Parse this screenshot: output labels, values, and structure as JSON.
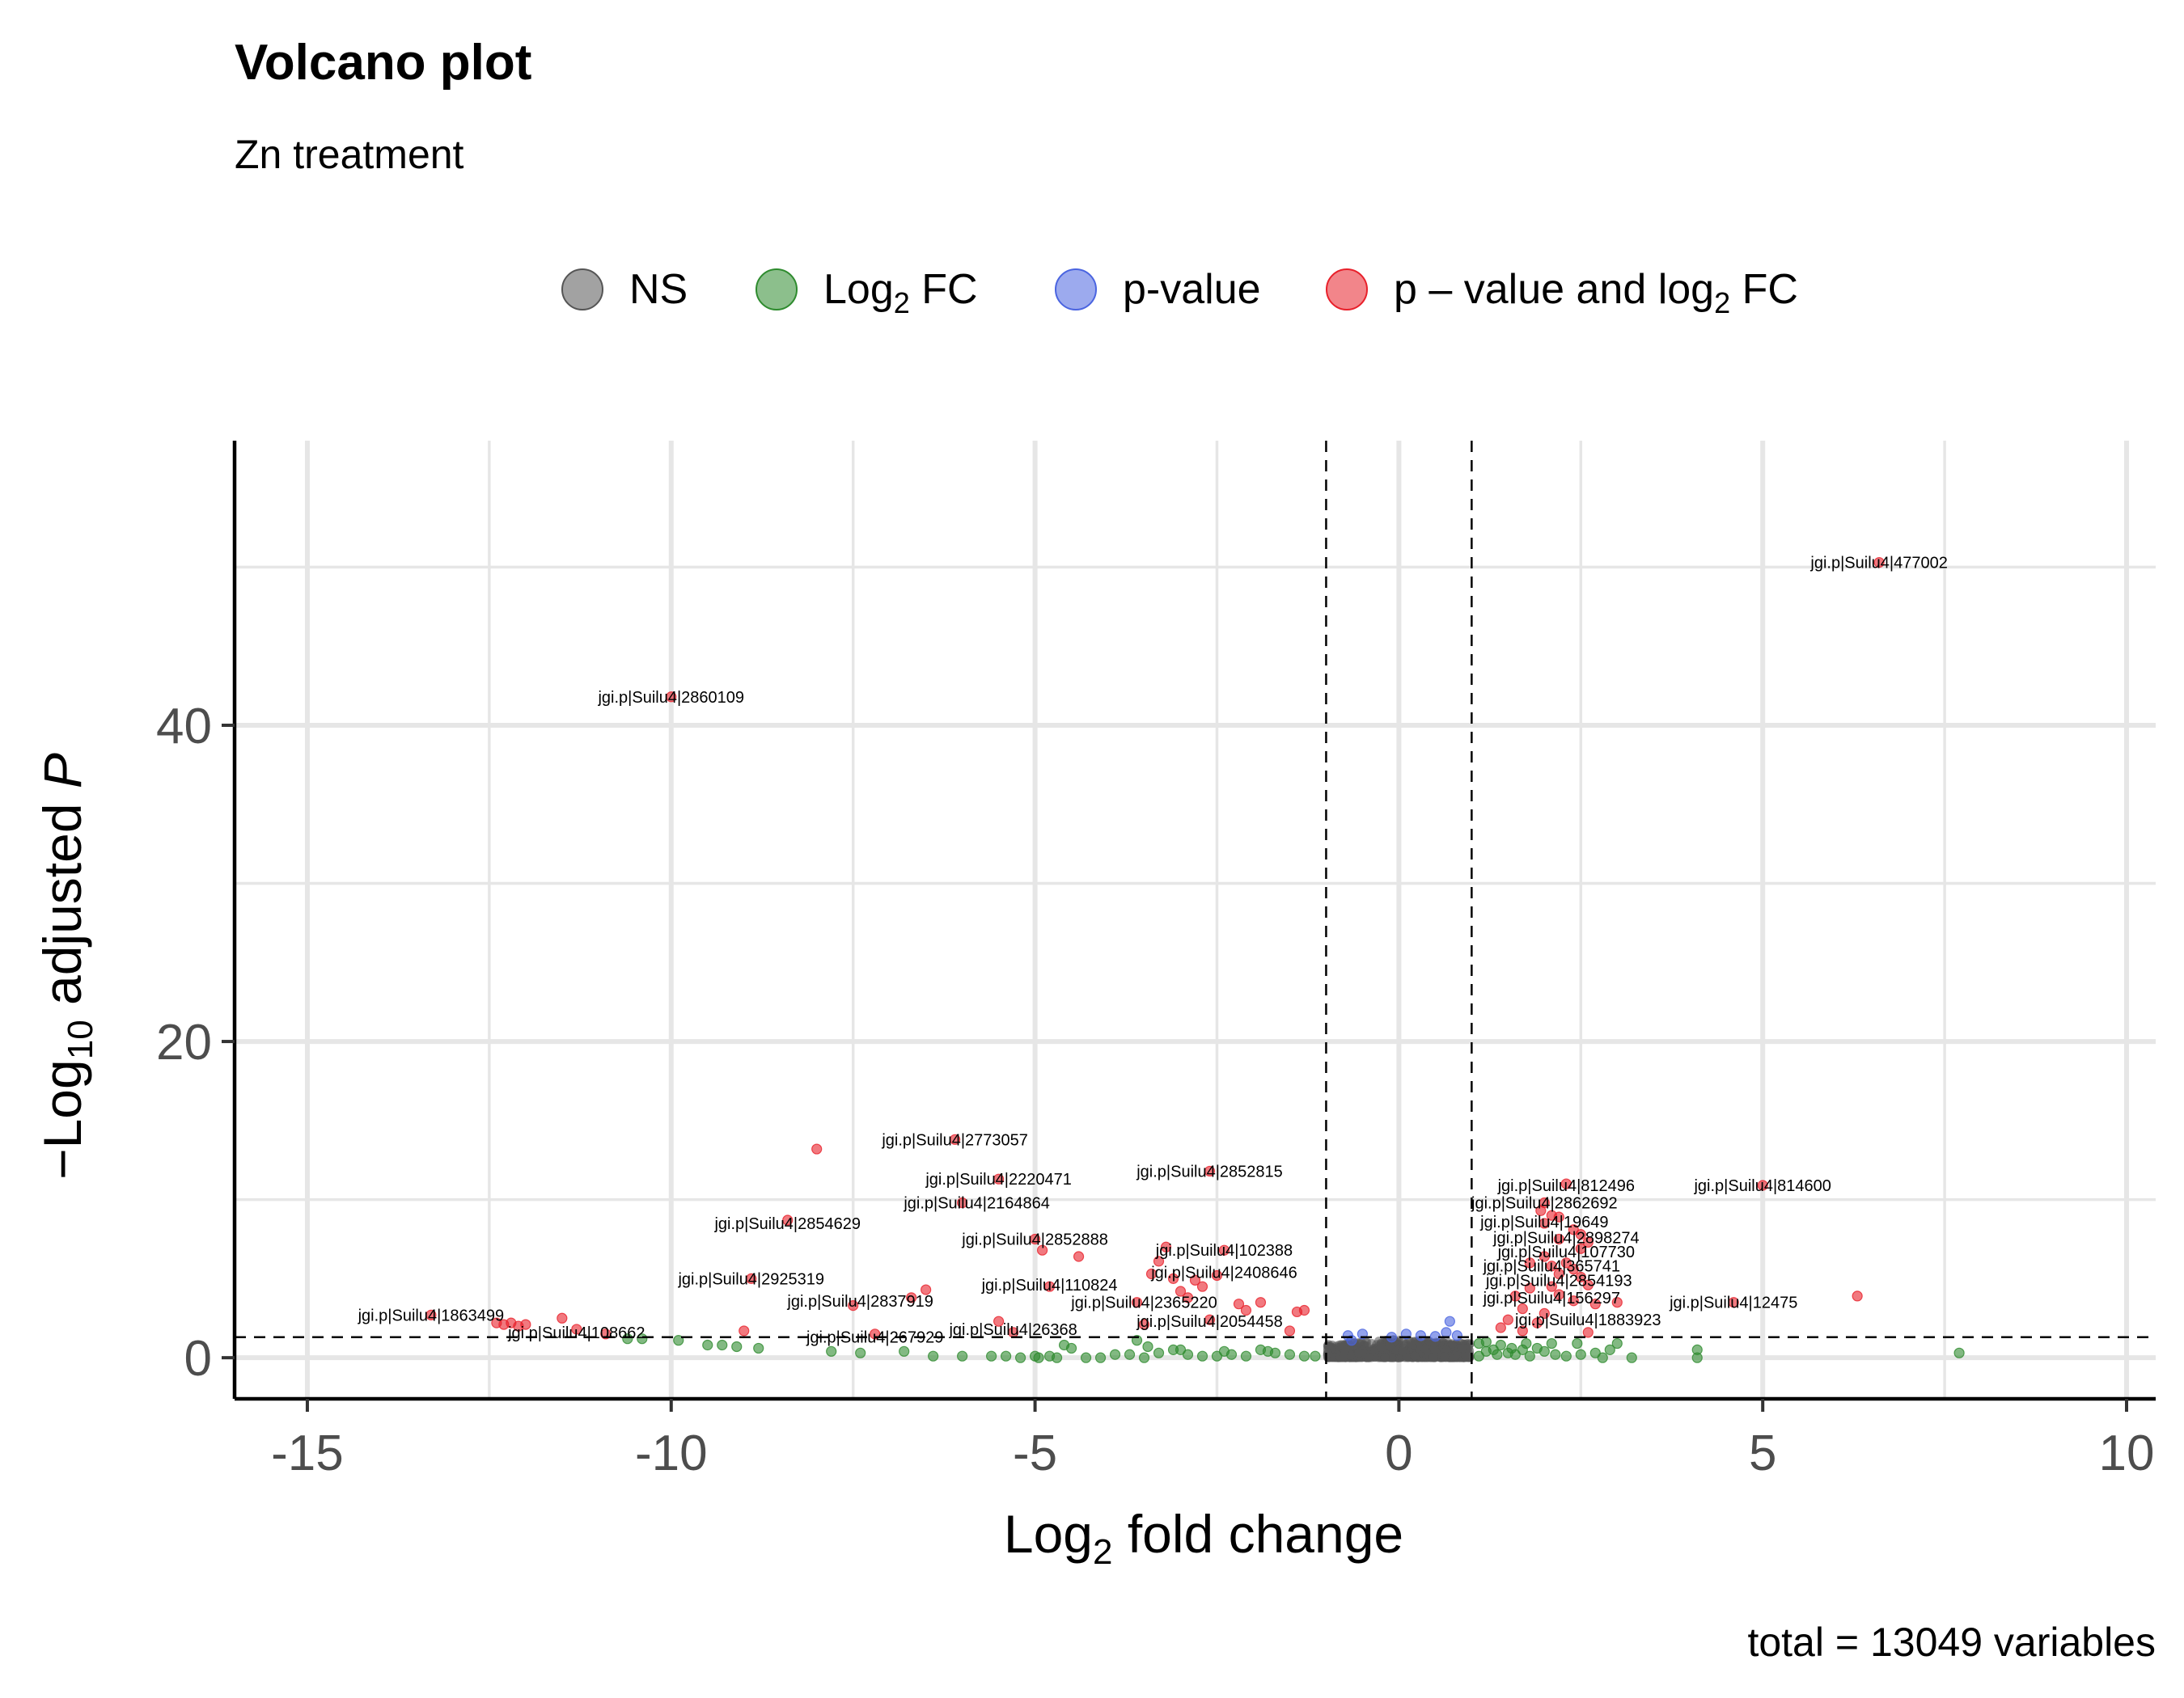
{
  "chart_data": {
    "type": "scatter",
    "title": "Volcano plot",
    "subtitle": "Zn treatment",
    "xlabel": {
      "prefix": "Log",
      "sub": "2",
      "suffix": " fold change"
    },
    "ylabel": {
      "prefix": "−Log",
      "sub": "10",
      "middle": " adjusted ",
      "italic": "P"
    },
    "caption": "total = 13049 variables",
    "xlim": [
      -16,
      10.4
    ],
    "ylim": [
      -2.6,
      58
    ],
    "x_ticks": [
      -15,
      -10,
      -5,
      0,
      5,
      10
    ],
    "x_tick_labels": [
      "-15",
      "-10",
      "-5",
      "0",
      "5",
      "10"
    ],
    "y_ticks": [
      0,
      20,
      40
    ],
    "y_tick_labels": [
      "0",
      "20",
      "40"
    ],
    "grid": true,
    "legend_position": "top",
    "cutoffs": {
      "fc": [
        -1,
        1
      ],
      "p": 1.3
    },
    "legend": [
      {
        "key": "NS",
        "label": "NS",
        "sub": "",
        "suffix": "",
        "color": "#555555"
      },
      {
        "key": "FC",
        "label": "Log",
        "sub": "2",
        "suffix": " FC",
        "color": "#2e8b2e"
      },
      {
        "key": "P",
        "label": "p-value",
        "sub": "",
        "suffix": "",
        "color": "#4a64e0"
      },
      {
        "key": "PFC",
        "label": "p – value and log",
        "sub": "2",
        "suffix": " FC",
        "color": "#e8202a"
      }
    ],
    "series": [
      {
        "key": "PFC",
        "color": "#e8202a",
        "points": [
          [
            6.6,
            50.3
          ],
          [
            -10,
            41.8
          ],
          [
            -8,
            13.2
          ],
          [
            -6.1,
            13.8
          ],
          [
            -5.5,
            11.3
          ],
          [
            -2.6,
            11.8
          ],
          [
            -6,
            9.8
          ],
          [
            -8.4,
            8.7
          ],
          [
            -5,
            7.5
          ],
          [
            -4.9,
            6.8
          ],
          [
            -4.4,
            6.4
          ],
          [
            -3.2,
            7
          ],
          [
            -3.3,
            6.1
          ],
          [
            -3.1,
            5
          ],
          [
            -2.8,
            4.9
          ],
          [
            -2.7,
            4.5
          ],
          [
            -3.0,
            4.2
          ],
          [
            -3.4,
            5.3
          ],
          [
            -2.4,
            6.8
          ],
          [
            -2.5,
            5.2
          ],
          [
            -8.9,
            5
          ],
          [
            -6.5,
            4.3
          ],
          [
            -7.5,
            3.3
          ],
          [
            -6.7,
            3.8
          ],
          [
            -4.8,
            4.5
          ],
          [
            -3.6,
            3.5
          ],
          [
            -2.9,
            3.8
          ],
          [
            -2.2,
            3.4
          ],
          [
            -2.1,
            3.0
          ],
          [
            -1.9,
            3.5
          ],
          [
            -1.4,
            2.9
          ],
          [
            -1.3,
            3.0
          ],
          [
            -5.5,
            2.3
          ],
          [
            -3.5,
            2.1
          ],
          [
            -2.6,
            2.4
          ],
          [
            -1.5,
            1.7
          ],
          [
            -12.4,
            2.2
          ],
          [
            -12.3,
            2.1
          ],
          [
            -12.2,
            2.2
          ],
          [
            -12.1,
            2.0
          ],
          [
            -12.0,
            2.1
          ],
          [
            -11.5,
            2.5
          ],
          [
            -11.3,
            1.8
          ],
          [
            -13.3,
            2.7
          ],
          [
            -10.9,
            1.5
          ],
          [
            -9.0,
            1.7
          ],
          [
            -7.2,
            1.5
          ],
          [
            -5.3,
            1.6
          ],
          [
            2.3,
            11
          ],
          [
            2,
            9.8
          ],
          [
            1.95,
            9.3
          ],
          [
            2.1,
            9.0
          ],
          [
            2.0,
            8.5
          ],
          [
            2.4,
            8.1
          ],
          [
            2.2,
            7.5
          ],
          [
            2.6,
            7.3
          ],
          [
            2.5,
            6.9
          ],
          [
            2.0,
            6.4
          ],
          [
            2.3,
            6.0
          ],
          [
            2.4,
            5.6
          ],
          [
            2.2,
            5.3
          ],
          [
            2.5,
            5.1
          ],
          [
            2.6,
            4.6
          ],
          [
            1.8,
            4.4
          ],
          [
            2.1,
            4.5
          ],
          [
            2.2,
            4.0
          ],
          [
            1.6,
            3.9
          ],
          [
            2.4,
            3.6
          ],
          [
            2.7,
            3.4
          ],
          [
            1.7,
            3.1
          ],
          [
            2.0,
            2.8
          ],
          [
            3.0,
            3.5
          ],
          [
            1.5,
            2.4
          ],
          [
            1.9,
            2.2
          ],
          [
            1.4,
            1.9
          ],
          [
            1.7,
            1.7
          ],
          [
            2.6,
            1.6
          ],
          [
            4.6,
            3.5
          ],
          [
            5,
            10.9
          ],
          [
            6.3,
            3.9
          ],
          [
            2.2,
            8.9
          ],
          [
            2.5,
            7.8
          ],
          [
            1.8,
            6.0
          ],
          [
            2.1,
            5.8
          ]
        ]
      },
      {
        "key": "FC",
        "color": "#2e8b2e",
        "points": [
          [
            -10.6,
            1.2
          ],
          [
            -10.4,
            1.2
          ],
          [
            -9.9,
            1.1
          ],
          [
            -9.5,
            0.8
          ],
          [
            -9.3,
            0.8
          ],
          [
            -9.1,
            0.7
          ],
          [
            -8.8,
            0.6
          ],
          [
            -7.8,
            0.4
          ],
          [
            -7.4,
            0.3
          ],
          [
            -6.8,
            0.4
          ],
          [
            -6.4,
            0.1
          ],
          [
            -6.0,
            0.1
          ],
          [
            -5.6,
            0.1
          ],
          [
            -5.4,
            0.1
          ],
          [
            -5.2,
            0
          ],
          [
            -5.0,
            0.1
          ],
          [
            -4.8,
            0.1
          ],
          [
            -4.6,
            0.8
          ],
          [
            -4.5,
            0.6
          ],
          [
            -4.3,
            0
          ],
          [
            -4.1,
            0
          ],
          [
            -3.9,
            0.2
          ],
          [
            -3.7,
            0.2
          ],
          [
            -3.5,
            0
          ],
          [
            -3.3,
            0.3
          ],
          [
            -3.1,
            0.5
          ],
          [
            -2.9,
            0.2
          ],
          [
            -2.7,
            0.1
          ],
          [
            -2.5,
            0.1
          ],
          [
            -2.3,
            0.2
          ],
          [
            -2.1,
            0.1
          ],
          [
            -1.9,
            0.5
          ],
          [
            -1.7,
            0.3
          ],
          [
            -1.5,
            0.2
          ],
          [
            -1.3,
            0.1
          ],
          [
            -1.15,
            0.1
          ],
          [
            -4.95,
            0
          ],
          [
            -4.7,
            0
          ],
          [
            -3.6,
            1.1
          ],
          [
            -3.45,
            0.7
          ],
          [
            -3.0,
            0.5
          ],
          [
            -2.4,
            0.4
          ],
          [
            -1.8,
            0.4
          ],
          [
            1.1,
            0.1
          ],
          [
            1.2,
            0.4
          ],
          [
            1.3,
            0.5
          ],
          [
            1.4,
            0.8
          ],
          [
            1.5,
            0.3
          ],
          [
            1.6,
            0.2
          ],
          [
            1.7,
            0.5
          ],
          [
            1.8,
            0.1
          ],
          [
            1.9,
            0.6
          ],
          [
            2.0,
            0.4
          ],
          [
            2.1,
            0.9
          ],
          [
            2.3,
            0.1
          ],
          [
            2.5,
            0.2
          ],
          [
            2.7,
            0.3
          ],
          [
            2.9,
            0.5
          ],
          [
            3.0,
            0.9
          ],
          [
            3.2,
            0
          ],
          [
            4.1,
            0
          ],
          [
            4.1,
            0.5
          ],
          [
            7.7,
            0.3
          ],
          [
            1.1,
            0.9
          ],
          [
            1.2,
            1.0
          ],
          [
            1.35,
            0.2
          ],
          [
            1.55,
            0.6
          ],
          [
            1.75,
            0.9
          ],
          [
            2.15,
            0.2
          ],
          [
            2.45,
            0.9
          ],
          [
            2.8,
            0
          ]
        ]
      },
      {
        "key": "P",
        "color": "#4a64e0",
        "points": [
          [
            -0.7,
            1.4
          ],
          [
            -0.65,
            1.1
          ],
          [
            -0.1,
            1.3
          ],
          [
            0.1,
            1.5
          ],
          [
            0.3,
            1.4
          ],
          [
            0.5,
            1.35
          ],
          [
            0.7,
            2.3
          ],
          [
            0.65,
            1.6
          ],
          [
            -0.5,
            1.5
          ],
          [
            0.8,
            1.4
          ]
        ]
      },
      {
        "key": "NS",
        "color": "#555555",
        "band": {
          "x": [
            -0.98,
            0.98
          ],
          "y": [
            0,
            1.2
          ],
          "count": 900
        }
      }
    ],
    "labels": [
      {
        "text": "jgi.p|Suilu4|477002",
        "x": 6.6,
        "y": 50.3
      },
      {
        "text": "jgi.p|Suilu4|2860109",
        "x": -10,
        "y": 41.8
      },
      {
        "text": "jgi.p|Suilu4|2773057",
        "x": -6.1,
        "y": 13.8
      },
      {
        "text": "jgi.p|Suilu4|2220471",
        "x": -5.5,
        "y": 11.3
      },
      {
        "text": "jgi.p|Suilu4|2852815",
        "x": -2.6,
        "y": 11.8
      },
      {
        "text": "jgi.p|Suilu4|2164864",
        "x": -5.8,
        "y": 9.8
      },
      {
        "text": "jgi.p|Suilu4|2854629",
        "x": -8.4,
        "y": 8.5
      },
      {
        "text": "jgi.p|Suilu4|2852888",
        "x": -5,
        "y": 7.5
      },
      {
        "text": "jgi.p|Suilu4|102388",
        "x": -2.4,
        "y": 6.8
      },
      {
        "text": "jgi.p|Suilu4|2408646",
        "x": -2.4,
        "y": 5.4
      },
      {
        "text": "jgi.p|Suilu4|2925319",
        "x": -8.9,
        "y": 5.0
      },
      {
        "text": "jgi.p|Suilu4|110824",
        "x": -4.8,
        "y": 4.6
      },
      {
        "text": "jgi.p|Suilu4|2837919",
        "x": -7.4,
        "y": 3.6
      },
      {
        "text": "jgi.p|Suilu4|2365220",
        "x": -3.5,
        "y": 3.5
      },
      {
        "text": "jgi.p|Suilu4|1863499",
        "x": -13.3,
        "y": 2.7
      },
      {
        "text": "jgi.p|Suilu4|2054458",
        "x": -2.6,
        "y": 2.3
      },
      {
        "text": "jgi.p|Suilu4|26368",
        "x": -5.3,
        "y": 1.8
      },
      {
        "text": "jgi.p|Suilu4|108662",
        "x": -11.3,
        "y": 1.6
      },
      {
        "text": "jgi.p|Suilu4|267929",
        "x": -7.2,
        "y": 1.3
      },
      {
        "text": "jgi.p|Suilu4|812496",
        "x": 2.3,
        "y": 10.9
      },
      {
        "text": "jgi.p|Suilu4|2862692",
        "x": 2.0,
        "y": 9.8
      },
      {
        "text": "jgi.p|Suilu4|19649",
        "x": 2.0,
        "y": 8.6
      },
      {
        "text": "jgi.p|Suilu4|2898274",
        "x": 2.3,
        "y": 7.6
      },
      {
        "text": "jgi.p|Suilu4|107730",
        "x": 2.3,
        "y": 6.7
      },
      {
        "text": "jgi.p|Suilu4|365741",
        "x": 2.1,
        "y": 5.8
      },
      {
        "text": "jgi.p|Suilu4|2854193",
        "x": 2.2,
        "y": 4.9
      },
      {
        "text": "jgi.p|Suilu4|156297",
        "x": 2.1,
        "y": 3.8
      },
      {
        "text": "jgi.p|Suilu4|1883923",
        "x": 2.6,
        "y": 2.4
      },
      {
        "text": "jgi.p|Suilu4|814600",
        "x": 5,
        "y": 10.9
      },
      {
        "text": "jgi.p|Suilu4|12475",
        "x": 4.6,
        "y": 3.5
      }
    ]
  }
}
